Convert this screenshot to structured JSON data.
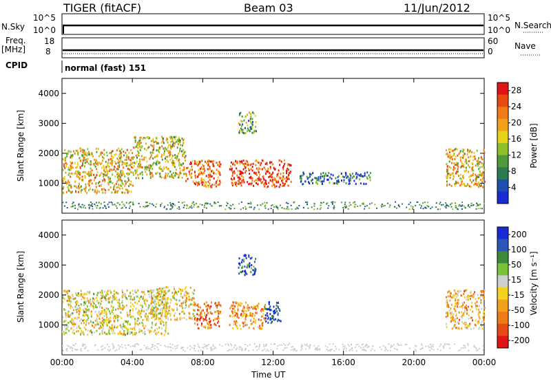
{
  "header": {
    "radar": "TIGER (fitACF)",
    "beam": "Beam 03",
    "date": "11/Jun/2012"
  },
  "strip": {
    "nsky_label": "N.Sky",
    "nsky_ticks": [
      "10^5",
      "10^0"
    ],
    "nsearch_label": "N.Search",
    "nsearch_ticks": [
      "10^5",
      "10^0"
    ],
    "freq_label": "Freq.",
    "freq_unit": "[MHz]",
    "freq_ticks": [
      "18",
      "8"
    ],
    "nave_label": "Nave",
    "nave_ticks": [
      "60",
      "0"
    ],
    "cpid_label": "CPID",
    "cpid_value": "normal (fast) 151"
  },
  "colors": {
    "power": [
      "#1a2bd6",
      "#1f4fae",
      "#2c7a4f",
      "#4f9a3a",
      "#8cbf2a",
      "#e6d21a",
      "#f2a21a",
      "#f07a14",
      "#e84a10",
      "#e01414"
    ],
    "velocity": [
      "#1a2bd6",
      "#2b55b8",
      "#3a8a3a",
      "#7ac23a",
      "#cfcfcf",
      "#f4d21e",
      "#f2a21a",
      "#ee7a18",
      "#e84a14",
      "#e01414"
    ]
  },
  "chart_data": [
    {
      "type": "heatmap",
      "title": "",
      "xlabel": "Time UT",
      "ylabel": "Slant Range [km]",
      "x_ticks": [
        "00:00",
        "04:00",
        "08:00",
        "12:00",
        "16:00",
        "20:00",
        "00:00"
      ],
      "y_ticks": [
        "1000",
        "2000",
        "3000",
        "4000"
      ],
      "ylim": [
        0,
        4500
      ],
      "xlim_hours": [
        0,
        24
      ],
      "colorbar_label": "Power [dB]",
      "colorbar_ticks": [
        "4",
        "8",
        "12",
        "16",
        "20",
        "24",
        "28"
      ],
      "colorbar_range": [
        0,
        30
      ],
      "regions": [
        {
          "t": [
            0.0,
            4.0
          ],
          "r": [
            700,
            2200
          ],
          "level": 18
        },
        {
          "t": [
            4.0,
            7.0
          ],
          "r": [
            1200,
            2600
          ],
          "level": 16
        },
        {
          "t": [
            7.0,
            9.0
          ],
          "r": [
            900,
            1800
          ],
          "level": 24
        },
        {
          "t": [
            9.5,
            13.0
          ],
          "r": [
            900,
            1800
          ],
          "level": 26
        },
        {
          "t": [
            10.0,
            11.0
          ],
          "r": [
            2700,
            3400
          ],
          "level": 12
        },
        {
          "t": [
            13.5,
            17.5
          ],
          "r": [
            1000,
            1400
          ],
          "level": 6
        },
        {
          "t": [
            21.8,
            24.0
          ],
          "r": [
            900,
            2200
          ],
          "level": 18
        }
      ]
    },
    {
      "type": "heatmap",
      "title": "",
      "xlabel": "Time UT",
      "ylabel": "Slant Range [km]",
      "x_ticks": [
        "00:00",
        "04:00",
        "08:00",
        "12:00",
        "16:00",
        "20:00",
        "00:00"
      ],
      "y_ticks": [
        "1000",
        "2000",
        "3000",
        "4000"
      ],
      "ylim": [
        0,
        4500
      ],
      "xlim_hours": [
        0,
        24
      ],
      "colorbar_label": "Velocity [m s⁻¹]",
      "colorbar_ticks": [
        "200",
        "100",
        "50",
        "15",
        "-15",
        "-50",
        "-100",
        "-200"
      ],
      "colorbar_range": [
        -250,
        250
      ],
      "regions": [
        {
          "t": [
            0.0,
            6.0
          ],
          "r": [
            700,
            2200
          ],
          "level": 0
        },
        {
          "t": [
            5.0,
            7.5
          ],
          "r": [
            1200,
            2300
          ],
          "level": -20
        },
        {
          "t": [
            7.5,
            9.0
          ],
          "r": [
            900,
            1800
          ],
          "level": -150
        },
        {
          "t": [
            9.5,
            11.5
          ],
          "r": [
            900,
            1800
          ],
          "level": -80
        },
        {
          "t": [
            11.5,
            12.5
          ],
          "r": [
            1100,
            1800
          ],
          "level": 200
        },
        {
          "t": [
            10.0,
            11.0
          ],
          "r": [
            2700,
            3400
          ],
          "level": 180
        },
        {
          "t": [
            21.8,
            24.0
          ],
          "r": [
            900,
            2200
          ],
          "level": -60
        }
      ]
    }
  ]
}
